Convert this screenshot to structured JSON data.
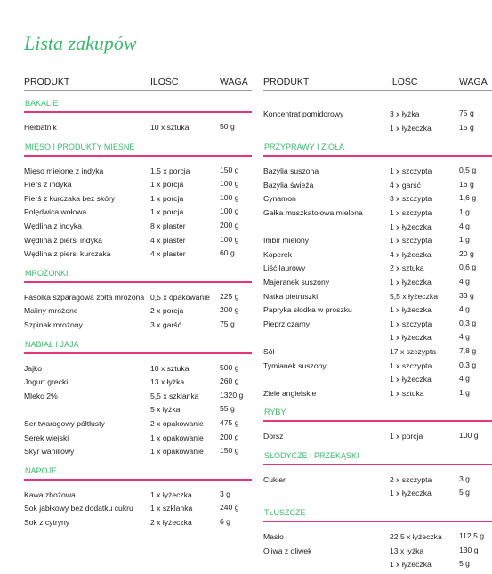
{
  "title": "Lista zakupów",
  "header": {
    "product": "PRODUKT",
    "qty": "ILOŚĆ",
    "weight": "WAGA"
  },
  "columns": [
    {
      "sections": [
        {
          "name": "BAKALIE",
          "items": [
            {
              "product": "Herbatnik",
              "qty": "10 x sztuka",
              "weight": "50 g"
            }
          ]
        },
        {
          "name": "MIĘSO I PRODUKTY MIĘSNE",
          "items": [
            {
              "product": "Mięso mielone z indyka",
              "qty": "1,5 x porcja",
              "weight": "150 g"
            },
            {
              "product": "Pierś z indyka",
              "qty": "1 x porcja",
              "weight": "100 g"
            },
            {
              "product": "Pierś z kurczaka bez skóry",
              "qty": "1 x porcja",
              "weight": "100 g"
            },
            {
              "product": "Polędwica wołowa",
              "qty": "1 x porcja",
              "weight": "100 g"
            },
            {
              "product": "Wędlina z indyka",
              "qty": "8 x plaster",
              "weight": "200 g"
            },
            {
              "product": "Wędlina z piersi indyka",
              "qty": "4 x plaster",
              "weight": "100 g"
            },
            {
              "product": "Wędlina z piersi kurczaka",
              "qty": "4 x plaster",
              "weight": "60 g"
            }
          ]
        },
        {
          "name": "MROŻONKI",
          "items": [
            {
              "product": "Fasolka szparagowa żółta mrożona",
              "qty": "0,5 x opakowanie",
              "weight": "225 g"
            },
            {
              "product": "Maliny mrożone",
              "qty": "2 x porcja",
              "weight": "200 g"
            },
            {
              "product": "Szpinak mrożony",
              "qty": "3 x garść",
              "weight": "75 g"
            }
          ]
        },
        {
          "name": "NABIAŁ I JAJA",
          "items": [
            {
              "product": "Jajko",
              "qty": "10 x sztuka",
              "weight": "500 g"
            },
            {
              "product": "Jogurt grecki",
              "qty": "13 x łyżka",
              "weight": "260 g"
            },
            {
              "product": "Mleko 2%",
              "qty": "5,5 x szklanka",
              "weight": "1320 g"
            },
            {
              "qty": "5 x łyżka",
              "weight": "55 g"
            },
            {
              "product": "Ser twarogowy półtłusty",
              "qty": "2 x opakowanie",
              "weight": "475 g"
            },
            {
              "product": "Serek wiejski",
              "qty": "1 x opakowanie",
              "weight": "200 g"
            },
            {
              "product": "Skyr waniliowy",
              "qty": "1 x opakowanie",
              "weight": "150 g"
            }
          ]
        },
        {
          "name": "NAPOJE",
          "items": [
            {
              "product": "Kawa zbożowa",
              "qty": "1 x łyżeczka",
              "weight": "3 g"
            },
            {
              "product": "Sok jabłkowy bez dodatku cukru",
              "qty": "1 x szklanka",
              "weight": "240 g"
            },
            {
              "product": "Sok z cytryny",
              "qty": "2 x łyżeczka",
              "weight": "6 g"
            }
          ]
        }
      ]
    },
    {
      "sections": [
        {
          "items": [
            {
              "product": "Koncentrat pomidorowy",
              "qty": "3 x łyżka",
              "weight": "75 g"
            },
            {
              "qty": "1 x łyżeczka",
              "weight": "15 g"
            }
          ]
        },
        {
          "name": "PRZYPRAWY I ZIOŁA",
          "items": [
            {
              "product": "Bazylia suszona",
              "qty": "1 x szczypta",
              "weight": "0,5 g"
            },
            {
              "product": "Bazylia świeża",
              "qty": "4 x garść",
              "weight": "16 g"
            },
            {
              "product": "Cynamon",
              "qty": "3 x szczypta",
              "weight": "1,6 g"
            },
            {
              "product": "Gałka muszkatołowa mielona",
              "qty": "1 x szczypta",
              "weight": "1 g"
            },
            {
              "qty": "1 x łyżeczka",
              "weight": "4 g"
            },
            {
              "product": "Imbir mielony",
              "qty": "1 x szczypta",
              "weight": "1 g"
            },
            {
              "product": "Koperek",
              "qty": "4 x łyżeczka",
              "weight": "20 g"
            },
            {
              "product": "Liść laurowy",
              "qty": "2 x sztuka",
              "weight": "0,6 g"
            },
            {
              "product": "Majeranek suszony",
              "qty": "1 x łyżeczka",
              "weight": "4 g"
            },
            {
              "product": "Natka pietruszki",
              "qty": "5,5 x łyżeczka",
              "weight": "33 g"
            },
            {
              "product": "Papryka słodka w proszku",
              "qty": "1 x łyżeczka",
              "weight": "4 g"
            },
            {
              "product": "Pieprz czarny",
              "qty": "1 x szczypta",
              "weight": "0,3 g"
            },
            {
              "qty": "1 x łyżeczka",
              "weight": "4 g"
            },
            {
              "product": "Sól",
              "qty": "17 x szczypta",
              "weight": "7,8 g"
            },
            {
              "product": "Tymianek suszony",
              "qty": "1 x szczypta",
              "weight": "0,3 g"
            },
            {
              "qty": "1 x łyżeczka",
              "weight": "4 g"
            },
            {
              "product": "Ziele angielskie",
              "qty": "1 x sztuka",
              "weight": "1 g"
            }
          ]
        },
        {
          "name": "RYBY",
          "items": [
            {
              "product": "Dorsz",
              "qty": "1 x porcja",
              "weight": "100 g"
            }
          ]
        },
        {
          "name": "SŁODYCZE I PRZEKĄSKI",
          "items": [
            {
              "product": "Cukier",
              "qty": "2 x szczypta",
              "weight": "3 g"
            },
            {
              "qty": "1 x łyżeczka",
              "weight": "5 g"
            }
          ]
        },
        {
          "name": "TŁUSZCZE",
          "items": [
            {
              "product": "Masło",
              "qty": "22,5 x łyżeczka",
              "weight": "112,5 g"
            },
            {
              "product": "Oliwa z oliwek",
              "qty": "13 x łyżka",
              "weight": "130 g"
            },
            {
              "qty": "1 x łyżeczka",
              "weight": "5 g"
            }
          ]
        }
      ]
    }
  ]
}
